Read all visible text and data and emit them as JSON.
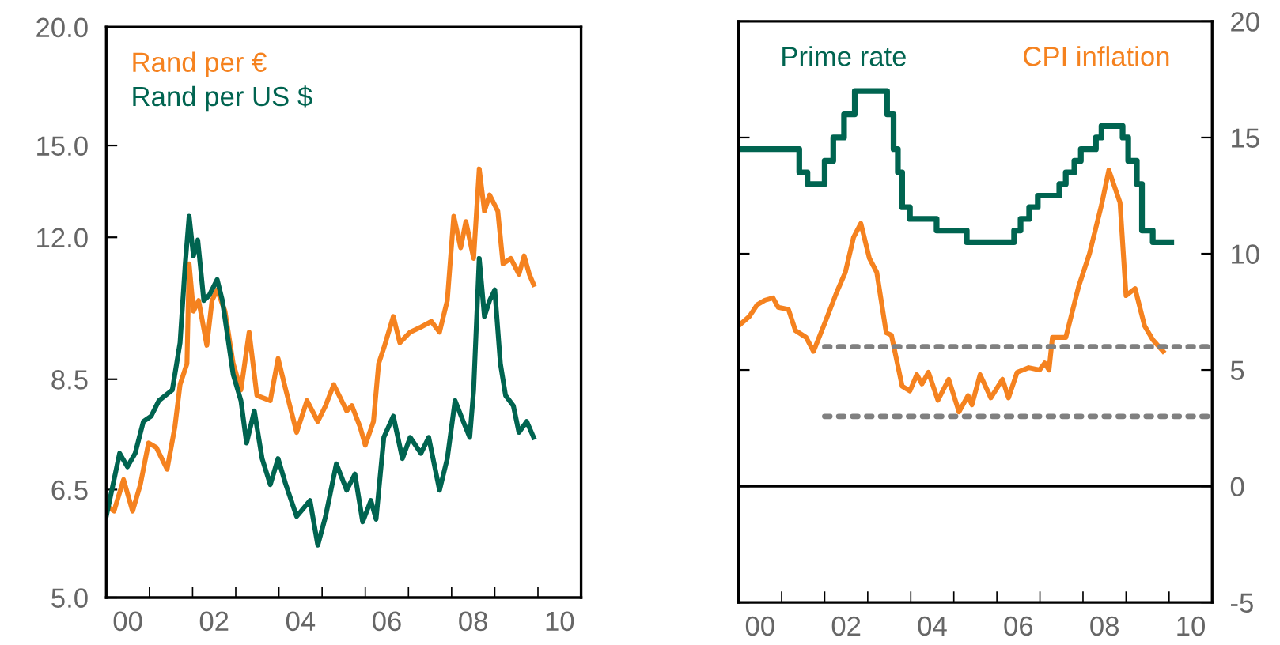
{
  "chart_data": [
    {
      "type": "line",
      "log": true,
      "legend": "top left",
      "xlim": [
        1999.5,
        2010.5
      ],
      "xticks": [
        {
          "value": 2000,
          "label": "00"
        },
        {
          "value": 2000.5,
          "label": null
        },
        {
          "value": 2001.5,
          "label": null
        },
        {
          "value": 2002,
          "label": "02"
        },
        {
          "value": 2002.5,
          "label": null
        },
        {
          "value": 2003.5,
          "label": null
        },
        {
          "value": 2004,
          "label": "04"
        },
        {
          "value": 2004.5,
          "label": null
        },
        {
          "value": 2005.5,
          "label": null
        },
        {
          "value": 2006,
          "label": "06"
        },
        {
          "value": 2006.5,
          "label": null
        },
        {
          "value": 2007.5,
          "label": null
        },
        {
          "value": 2008,
          "label": "08"
        },
        {
          "value": 2008.5,
          "label": null
        },
        {
          "value": 2009.5,
          "label": null
        },
        {
          "value": 2010,
          "label": "10"
        }
      ],
      "ylim": [
        5,
        20
      ],
      "yticks": [
        {
          "value": 5,
          "label": "5.0"
        },
        {
          "value": 6.5,
          "label": "6.5"
        },
        {
          "value": 8.5,
          "label": "8.5"
        },
        {
          "value": 12,
          "label": "12.0"
        },
        {
          "value": 15,
          "label": "15.0"
        },
        {
          "value": 20,
          "label": "20.0"
        }
      ],
      "series": [
        {
          "name": "Rand per €",
          "color": "#f5821f",
          "x": [
            1999.5,
            1999.68,
            1999.9,
            2000.11,
            2000.29,
            2000.48,
            2000.66,
            2000.91,
            2001.09,
            2001.21,
            2001.37,
            2001.42,
            2001.52,
            2001.64,
            2001.83,
            2001.95,
            2002.07,
            2002.25,
            2002.44,
            2002.62,
            2002.81,
            2002.99,
            2003.3,
            2003.48,
            2003.66,
            2003.91,
            2004.15,
            2004.4,
            2004.58,
            2004.77,
            2005.07,
            2005.19,
            2005.38,
            2005.5,
            2005.69,
            2005.81,
            2005.93,
            2006.15,
            2006.3,
            2006.54,
            2006.79,
            2007.03,
            2007.22,
            2007.4,
            2007.55,
            2007.71,
            2007.83,
            2008.01,
            2008.14,
            2008.26,
            2008.38,
            2008.57,
            2008.69,
            2008.87,
            2009.06,
            2009.18,
            2009.3,
            2009.4
          ],
          "values": [
            6.25,
            6.17,
            6.66,
            6.17,
            6.58,
            7.28,
            7.2,
            6.83,
            7.57,
            8.39,
            8.83,
            11.25,
            10.03,
            10.29,
            9.23,
            10.29,
            10.56,
            10.03,
            8.83,
            8.28,
            9.53,
            8.17,
            8.07,
            8.94,
            8.28,
            7.47,
            8.07,
            7.67,
            7.97,
            8.39,
            7.87,
            7.97,
            7.57,
            7.24,
            7.67,
            8.83,
            9.17,
            9.9,
            9.29,
            9.53,
            9.65,
            9.78,
            9.53,
            10.29,
            12.63,
            11.7,
            12.47,
            11.4,
            14.17,
            12.79,
            13.3,
            12.79,
            11.25,
            11.4,
            10.97,
            11.47,
            10.97,
            10.7
          ]
        },
        {
          "name": "Rand per US $",
          "color": "#006450",
          "x": [
            1999.5,
            1999.81,
            1999.99,
            2000.17,
            2000.36,
            2000.54,
            2000.72,
            2001.03,
            2001.21,
            2001.33,
            2001.42,
            2001.52,
            2001.62,
            2001.76,
            2001.89,
            2002.07,
            2002.19,
            2002.44,
            2002.62,
            2002.75,
            2002.93,
            2003.11,
            2003.3,
            2003.48,
            2003.66,
            2003.91,
            2004.22,
            2004.4,
            2004.58,
            2004.83,
            2005.07,
            2005.26,
            2005.44,
            2005.63,
            2005.75,
            2005.93,
            2006.15,
            2006.36,
            2006.54,
            2006.79,
            2006.97,
            2007.22,
            2007.4,
            2007.58,
            2007.77,
            2007.92,
            2008.01,
            2008.14,
            2008.26,
            2008.38,
            2008.5,
            2008.63,
            2008.75,
            2008.93,
            2009.06,
            2009.24,
            2009.4
          ],
          "values": [
            6.09,
            7.1,
            6.87,
            7.1,
            7.67,
            7.77,
            8.07,
            8.28,
            9.29,
            11.25,
            12.63,
            11.47,
            11.92,
            10.29,
            10.43,
            10.83,
            10.29,
            8.6,
            8.07,
            7.28,
            7.87,
            7.01,
            6.58,
            7.01,
            6.58,
            6.09,
            6.33,
            5.68,
            6.09,
            6.92,
            6.49,
            6.75,
            6.01,
            6.33,
            6.05,
            7.38,
            7.77,
            7.01,
            7.38,
            7.1,
            7.38,
            6.49,
            7.01,
            8.07,
            7.67,
            7.38,
            8.28,
            11.4,
            9.9,
            10.29,
            10.56,
            8.83,
            8.17,
            7.97,
            7.47,
            7.67,
            7.38
          ]
        }
      ]
    },
    {
      "type": "line",
      "legend": "top",
      "xlim": [
        1999.5,
        2010.5
      ],
      "xticks": [
        {
          "value": 2000,
          "label": "00"
        },
        {
          "value": 2000.5,
          "label": null
        },
        {
          "value": 2001.5,
          "label": null
        },
        {
          "value": 2002,
          "label": "02"
        },
        {
          "value": 2002.5,
          "label": null
        },
        {
          "value": 2003.5,
          "label": null
        },
        {
          "value": 2004,
          "label": "04"
        },
        {
          "value": 2004.5,
          "label": null
        },
        {
          "value": 2005.5,
          "label": null
        },
        {
          "value": 2006,
          "label": "06"
        },
        {
          "value": 2006.5,
          "label": null
        },
        {
          "value": 2007.5,
          "label": null
        },
        {
          "value": 2008,
          "label": "08"
        },
        {
          "value": 2008.5,
          "label": null
        },
        {
          "value": 2009.5,
          "label": null
        },
        {
          "value": 2010,
          "label": "10"
        }
      ],
      "y2lim": [
        -5,
        20
      ],
      "y2ticks": [
        -5,
        0,
        5,
        10,
        15,
        20
      ],
      "ref_lines": [
        {
          "axis": "y2",
          "value": 0,
          "color": "#000000"
        }
      ],
      "series": [
        {
          "name": "Prime rate",
          "type": "step",
          "axis": "y2",
          "color": "#006450",
          "x": [
            1999.5,
            2000.91,
            2001.1,
            2001.5,
            2001.7,
            2001.95,
            2002.2,
            2002.95,
            2003.1,
            2003.2,
            2003.3,
            2003.48,
            2004.1,
            2004.8,
            2005.9,
            2006.05,
            2006.25,
            2006.45,
            2006.95,
            2007.1,
            2007.3,
            2007.45,
            2007.8,
            2007.93,
            2008.42,
            2008.55,
            2008.75,
            2008.87,
            2009.12,
            2009.55
          ],
          "values": [
            14.5,
            13.5,
            13.0,
            14.0,
            15.0,
            16.0,
            17.0,
            16.0,
            14.5,
            13.5,
            12.0,
            11.5,
            11.0,
            10.5,
            11.0,
            11.5,
            12.0,
            12.5,
            13.0,
            13.5,
            14.0,
            14.5,
            15.0,
            15.5,
            15.0,
            14.0,
            13.0,
            11.0,
            10.5,
            10.5
          ]
        },
        {
          "name": "CPI inflation",
          "axis": "y2",
          "color": "#f5821f",
          "x": [
            1999.5,
            1999.75,
            1999.93,
            2000.11,
            2000.3,
            2000.42,
            2000.66,
            2000.82,
            2001.07,
            2001.24,
            2001.52,
            2001.77,
            2001.98,
            2002.17,
            2002.34,
            2002.54,
            2002.71,
            2002.93,
            2003.05,
            2003.3,
            2003.48,
            2003.64,
            2003.76,
            2003.91,
            2004.13,
            2004.38,
            2004.62,
            2004.83,
            2004.92,
            2005.11,
            2005.36,
            2005.63,
            2005.77,
            2005.97,
            2006.24,
            2006.49,
            2006.61,
            2006.71,
            2006.79,
            2007.1,
            2007.4,
            2007.65,
            2007.93,
            2008.1,
            2008.36,
            2008.5,
            2008.71,
            2008.93,
            2009.12,
            2009.36
          ],
          "values": [
            6.9,
            7.3,
            7.8,
            8.0,
            8.1,
            7.7,
            7.6,
            6.7,
            6.4,
            5.8,
            7.1,
            8.3,
            9.2,
            10.7,
            11.3,
            9.8,
            9.2,
            6.6,
            6.5,
            4.3,
            4.1,
            4.8,
            4.4,
            4.9,
            3.7,
            4.6,
            3.2,
            3.9,
            3.5,
            4.8,
            3.8,
            4.6,
            3.8,
            4.9,
            5.1,
            5.0,
            5.3,
            5.0,
            6.4,
            6.4,
            8.6,
            10.0,
            12.1,
            13.6,
            12.2,
            8.2,
            8.5,
            6.9,
            6.3,
            5.8
          ]
        },
        {
          "axis": "y2",
          "line_style": "dotted",
          "color": "#808080",
          "x": [
            2001.5,
            2010.5
          ],
          "values": [
            6,
            6
          ]
        },
        {
          "axis": "y2",
          "line_style": "dotted",
          "color": "#808080",
          "x": [
            2001.5,
            2010.5
          ],
          "values": [
            3,
            3
          ]
        }
      ]
    }
  ]
}
